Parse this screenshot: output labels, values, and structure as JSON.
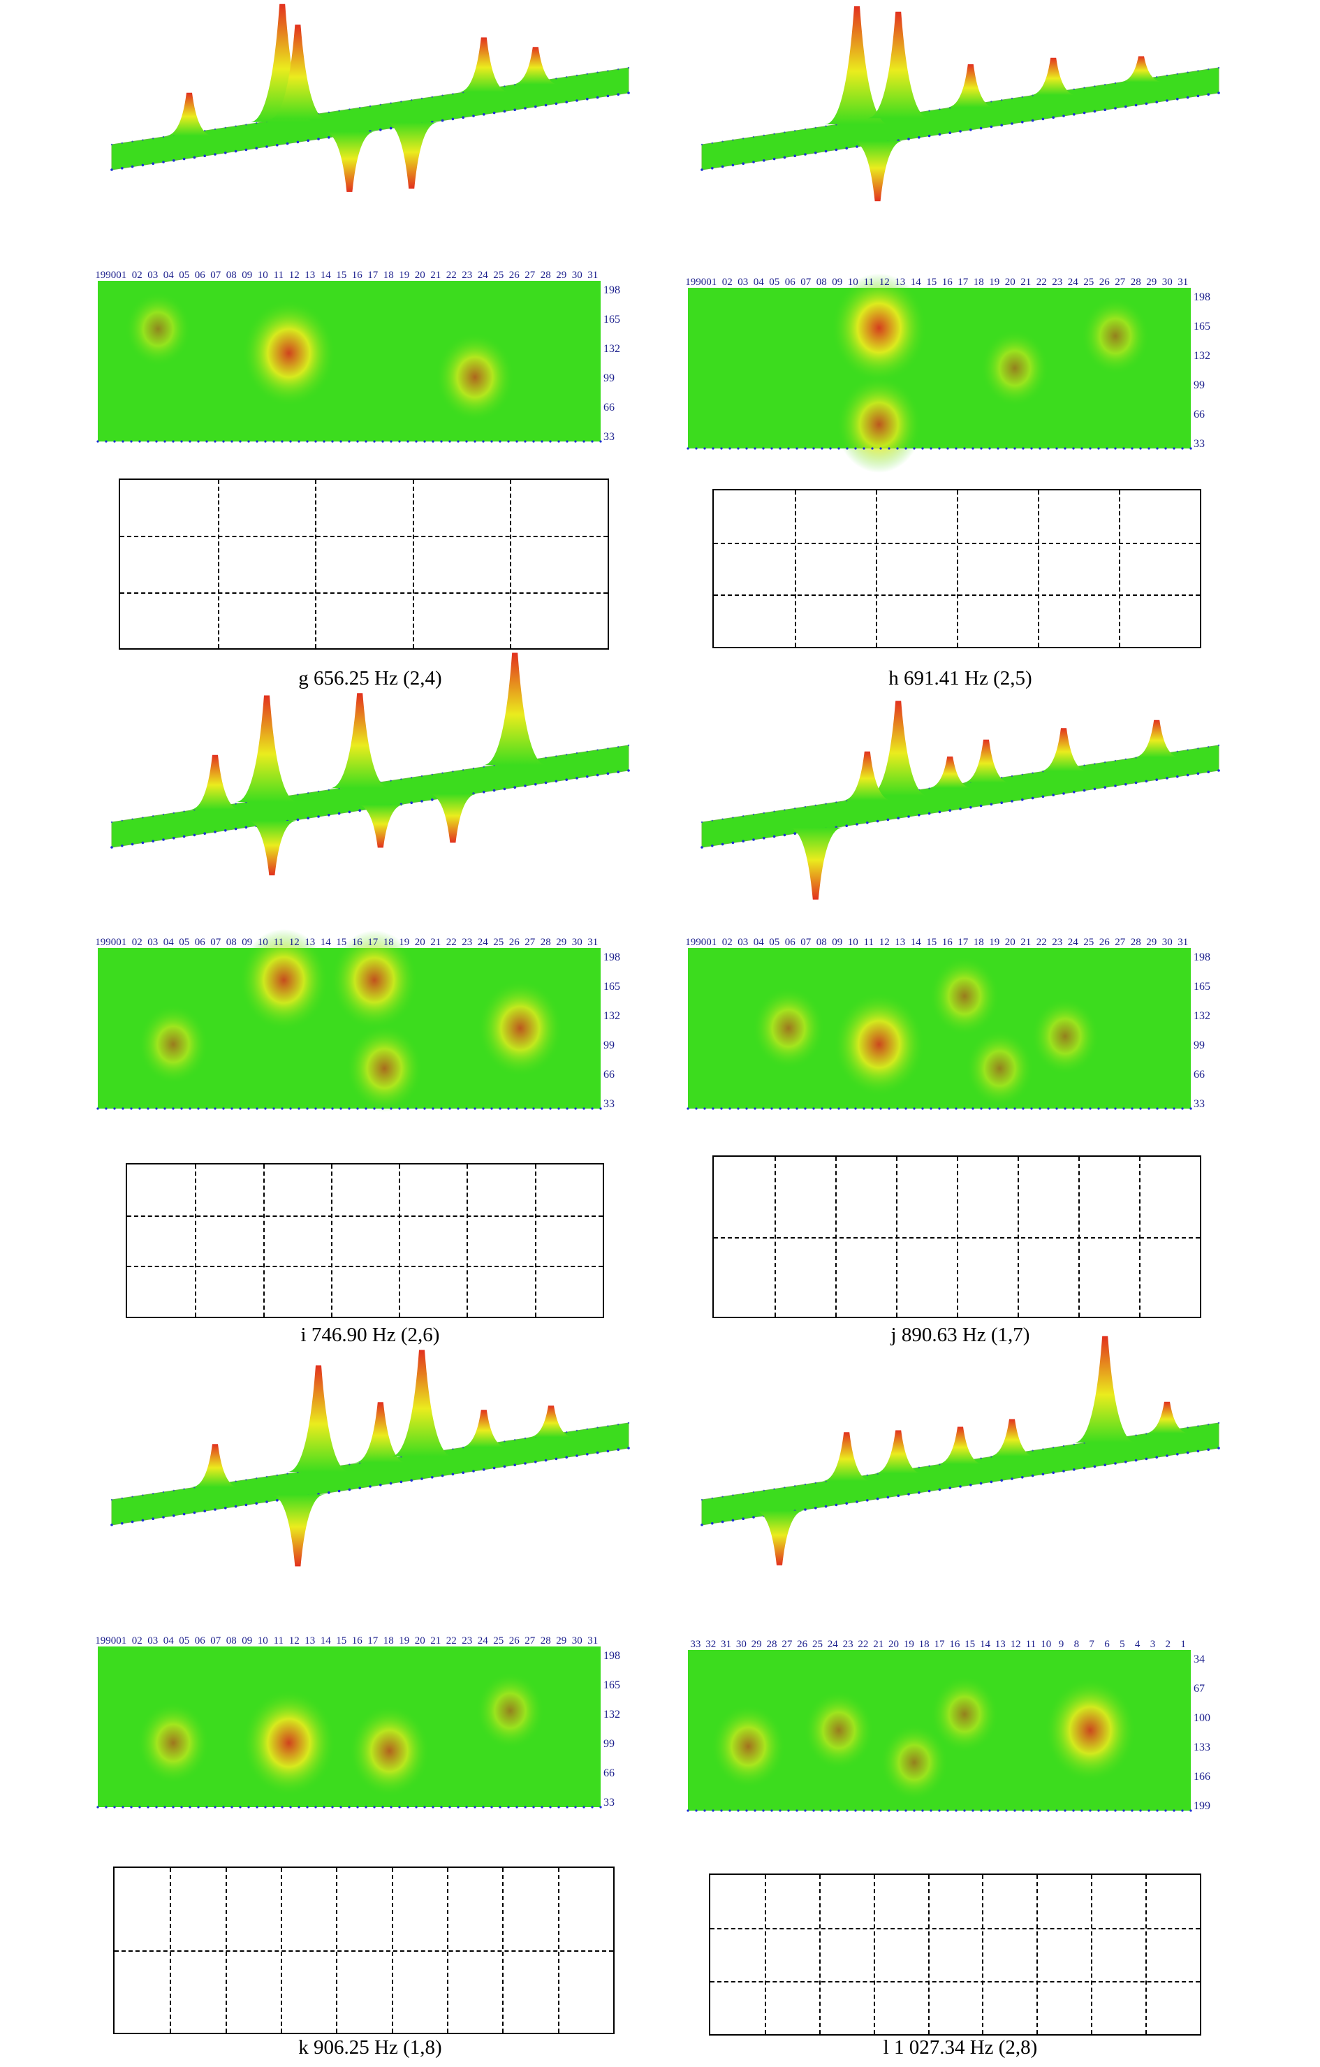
{
  "colors": {
    "low": "#3cdc1e",
    "mid": "#eaec1e",
    "high": "#e2301e",
    "mesh": "#1c2fd6"
  },
  "panels": [
    {
      "id": "g",
      "caption": "g 656.25 Hz (2,4)",
      "node_cols": 5,
      "node_rows": 3,
      "top_labels": [
        "1990",
        "01",
        "02",
        "03",
        "04",
        "05",
        "06",
        "07",
        "08",
        "09",
        "10",
        "11",
        "12",
        "13",
        "14",
        "15",
        "16",
        "17",
        "18",
        "19",
        "20",
        "21",
        "22",
        "23",
        "24",
        "25",
        "26",
        "27",
        "28",
        "29",
        "30",
        "31"
      ],
      "right_labels": [
        "198",
        "165",
        "132",
        "99",
        "66",
        "33"
      ]
    },
    {
      "id": "h",
      "caption": "h 691.41 Hz (2,5)",
      "node_cols": 6,
      "node_rows": 3,
      "top_labels": [
        "1990",
        "01",
        "02",
        "03",
        "04",
        "05",
        "06",
        "07",
        "08",
        "09",
        "10",
        "11",
        "12",
        "13",
        "14",
        "15",
        "16",
        "17",
        "18",
        "19",
        "20",
        "21",
        "22",
        "23",
        "24",
        "25",
        "26",
        "27",
        "28",
        "29",
        "30",
        "31"
      ],
      "right_labels": [
        "198",
        "165",
        "132",
        "99",
        "66",
        "33"
      ]
    },
    {
      "id": "i",
      "caption": "i 746.90 Hz (2,6)",
      "node_cols": 7,
      "node_rows": 3,
      "top_labels": [
        "1990",
        "01",
        "02",
        "03",
        "04",
        "05",
        "06",
        "07",
        "08",
        "09",
        "10",
        "11",
        "12",
        "13",
        "14",
        "15",
        "16",
        "17",
        "18",
        "19",
        "20",
        "21",
        "22",
        "23",
        "24",
        "25",
        "26",
        "27",
        "28",
        "29",
        "30",
        "31"
      ],
      "right_labels": [
        "198",
        "165",
        "132",
        "99",
        "66",
        "33"
      ]
    },
    {
      "id": "j",
      "caption": "j 890.63 Hz (1,7)",
      "node_cols": 8,
      "node_rows": 2,
      "top_labels": [
        "1990",
        "01",
        "02",
        "03",
        "04",
        "05",
        "06",
        "07",
        "08",
        "09",
        "10",
        "11",
        "12",
        "13",
        "14",
        "15",
        "16",
        "17",
        "18",
        "19",
        "20",
        "21",
        "22",
        "23",
        "24",
        "25",
        "26",
        "27",
        "28",
        "29",
        "30",
        "31"
      ],
      "right_labels": [
        "198",
        "165",
        "132",
        "99",
        "66",
        "33"
      ]
    },
    {
      "id": "k",
      "caption": "k 906.25 Hz (1,8)",
      "node_cols": 9,
      "node_rows": 2,
      "top_labels": [
        "1990",
        "01",
        "02",
        "03",
        "04",
        "05",
        "06",
        "07",
        "08",
        "09",
        "10",
        "11",
        "12",
        "13",
        "14",
        "15",
        "16",
        "17",
        "18",
        "19",
        "20",
        "21",
        "22",
        "23",
        "24",
        "25",
        "26",
        "27",
        "28",
        "29",
        "30",
        "31"
      ],
      "right_labels": [
        "198",
        "165",
        "132",
        "99",
        "66",
        "33"
      ]
    },
    {
      "id": "l",
      "caption": "l 1 027.34 Hz (2,8)",
      "node_cols": 9,
      "node_rows": 3,
      "top_labels": [
        "33",
        "32",
        "31",
        "30",
        "29",
        "28",
        "27",
        "26",
        "25",
        "24",
        "23",
        "22",
        "21",
        "20",
        "19",
        "18",
        "17",
        "16",
        "15",
        "14",
        "13",
        "12",
        "11",
        "10",
        "9",
        "8",
        "7",
        "6",
        "5",
        "4",
        "3",
        "2",
        "1"
      ],
      "right_labels": [
        "34",
        "67",
        "100",
        "133",
        "166",
        "199"
      ]
    }
  ]
}
